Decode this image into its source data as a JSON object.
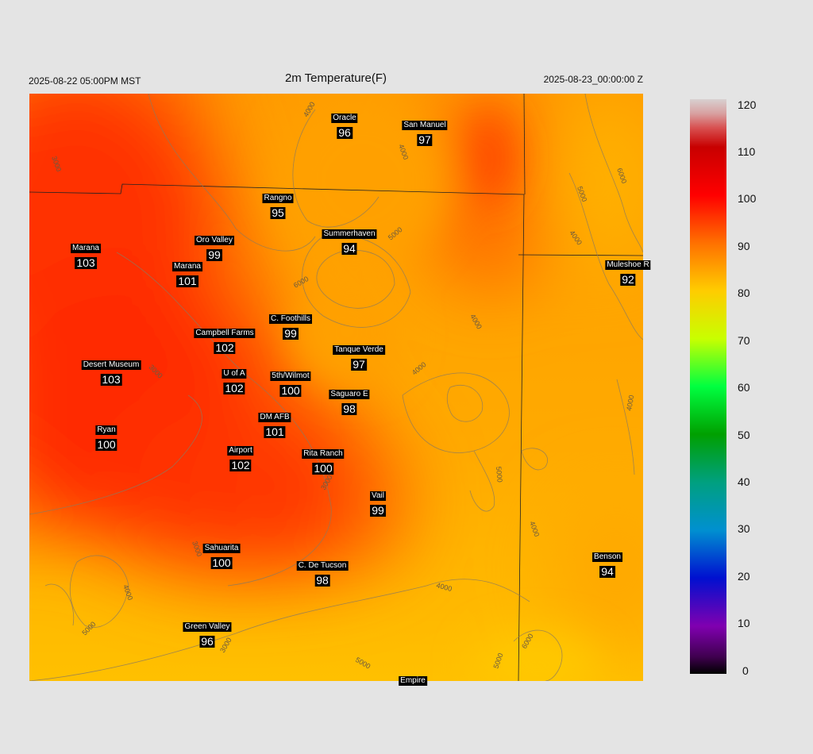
{
  "header": {
    "valid_local": "2025-08-22 05:00PM MST",
    "title": "2m Temperature(F)",
    "valid_utc": "2025-08-23_00:00:00 Z"
  },
  "colorbar": {
    "ticks": [
      "120",
      "110",
      "100",
      "90",
      "80",
      "70",
      "60",
      "50",
      "40",
      "30",
      "20",
      "10",
      "0"
    ],
    "range": [
      0,
      120
    ]
  },
  "contour_labels": [
    "3000",
    "4000",
    "5000",
    "6000"
  ],
  "stations": [
    {
      "name": "Oracle",
      "value": "96"
    },
    {
      "name": "San Manuel",
      "value": "97"
    },
    {
      "name": "Rangno",
      "value": "95"
    },
    {
      "name": "Marana",
      "value": "103"
    },
    {
      "name": "Oro Valley",
      "value": "99"
    },
    {
      "name": "Summerhaven",
      "value": "94"
    },
    {
      "name": "Marana",
      "value": "101"
    },
    {
      "name": "Muleshoe R",
      "value": "92"
    },
    {
      "name": "C. Foothills",
      "value": "99"
    },
    {
      "name": "Campbell Farms",
      "value": "102"
    },
    {
      "name": "Tanque Verde",
      "value": "97"
    },
    {
      "name": "Desert Museum",
      "value": "103"
    },
    {
      "name": "U of A",
      "value": "102"
    },
    {
      "name": "5th/Wilmot",
      "value": "100"
    },
    {
      "name": "Saguaro E",
      "value": "98"
    },
    {
      "name": "DM AFB",
      "value": "101"
    },
    {
      "name": "Ryan",
      "value": "100"
    },
    {
      "name": "Airport",
      "value": "102"
    },
    {
      "name": "Rita Ranch",
      "value": "100"
    },
    {
      "name": "Vail",
      "value": "99"
    },
    {
      "name": "Sahuarita",
      "value": "100"
    },
    {
      "name": "C. De Tucson",
      "value": "98"
    },
    {
      "name": "Benson",
      "value": "94"
    },
    {
      "name": "Green Valley",
      "value": "96"
    },
    {
      "name": "Empire",
      "value": ""
    }
  ]
}
